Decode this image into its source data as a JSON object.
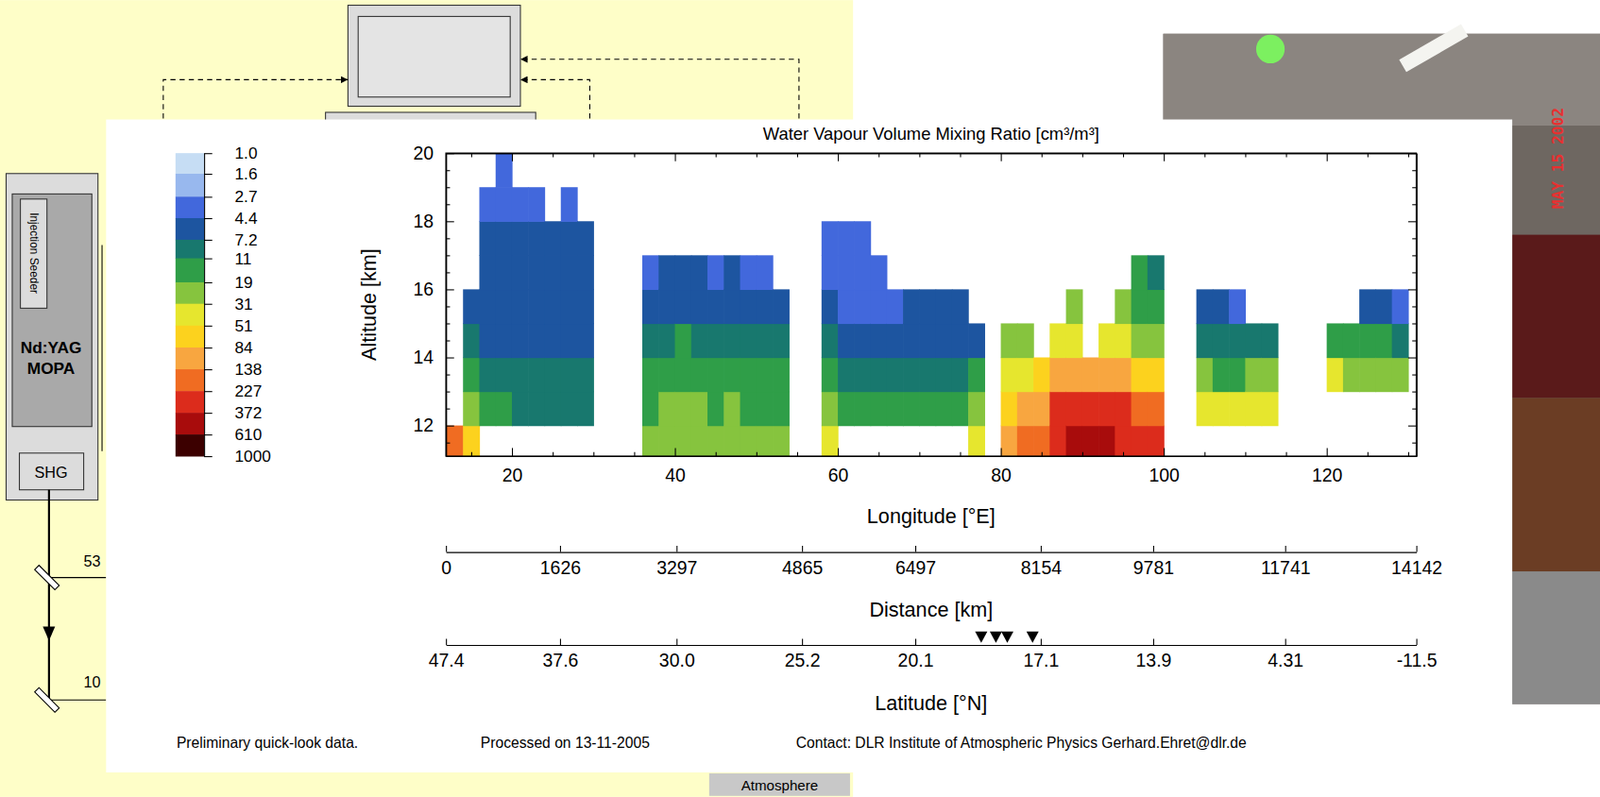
{
  "slide": {
    "seeder": "Injection Seeder",
    "laser": [
      "Nd:YAG",
      "MOPA"
    ],
    "shg": "SHG",
    "beam_labels": [
      "53",
      "10"
    ],
    "atmosphere": "Atmosphere"
  },
  "photo": {
    "date": "MAY 15 2002"
  },
  "chart_data": {
    "type": "heatmap",
    "title": "Water Vapour Volume Mixing Ratio [cm³/m³]",
    "x_label": "Longitude [°E]",
    "y_label": "Altitude [km]",
    "xlim": [
      11.9,
      131
    ],
    "ylim": [
      11.1,
      20
    ],
    "xticks": [
      20,
      40,
      60,
      80,
      100,
      120
    ],
    "yticks": [
      12,
      14,
      16,
      18,
      20
    ],
    "xminor": [
      15,
      25,
      30,
      35,
      45,
      50,
      55,
      65,
      70,
      75,
      85,
      90,
      95,
      105,
      110,
      115,
      125,
      130
    ],
    "yminor": [
      11.5,
      12.5,
      13,
      13.5,
      14.5,
      15,
      15.5,
      16.5,
      17,
      17.5,
      18.5,
      19,
      19.5
    ],
    "x_edges": [
      12,
      14,
      16,
      18,
      20,
      22,
      24,
      26,
      28,
      30,
      32,
      34,
      36,
      38,
      40,
      42,
      44,
      46,
      48,
      50,
      52,
      54,
      56,
      58,
      60,
      62,
      64,
      66,
      68,
      70,
      72,
      74,
      76,
      78,
      80,
      82,
      84,
      86,
      88,
      90,
      92,
      94,
      96,
      98,
      100,
      102,
      104,
      106,
      108,
      110,
      112,
      114,
      116,
      118,
      120,
      122,
      124,
      126,
      128,
      130
    ],
    "y_edges": [
      11,
      12,
      13,
      14,
      15,
      16,
      17,
      18,
      19,
      20
    ],
    "z": [
      [
        138,
        null,
        null,
        null,
        null,
        null,
        null,
        null,
        null
      ],
      [
        51,
        19,
        11,
        7.2,
        4.4,
        null,
        null,
        null,
        null
      ],
      [
        null,
        11,
        8,
        7,
        6,
        5.5,
        5,
        4,
        null
      ],
      [
        null,
        11,
        8,
        7,
        6,
        5.5,
        5,
        4,
        3
      ],
      [
        null,
        10,
        8,
        7,
        6,
        5.5,
        5,
        4,
        null
      ],
      [
        null,
        10,
        8,
        7,
        6,
        5.5,
        5,
        4,
        null
      ],
      [
        null,
        10,
        8,
        7,
        6,
        5.5,
        5,
        null,
        null
      ],
      [
        null,
        10,
        8,
        7,
        6,
        5.5,
        5,
        4,
        null
      ],
      [
        null,
        10,
        8,
        7,
        6,
        5.5,
        5,
        null,
        null
      ],
      [
        null,
        null,
        null,
        null,
        null,
        null,
        null,
        null,
        null
      ],
      [
        null,
        null,
        null,
        null,
        null,
        null,
        null,
        null,
        null
      ],
      [
        null,
        null,
        null,
        null,
        null,
        null,
        null,
        null,
        null
      ],
      [
        25,
        18,
        13,
        9,
        6,
        4,
        null,
        null,
        null
      ],
      [
        28,
        20,
        14,
        10,
        7,
        4.5,
        null,
        null,
        null
      ],
      [
        30,
        22,
        15,
        11,
        7,
        4.5,
        null,
        null,
        null
      ],
      [
        25,
        20,
        14,
        10,
        7,
        4.5,
        null,
        null,
        null
      ],
      [
        22,
        18,
        13,
        9,
        6,
        4,
        null,
        null,
        null
      ],
      [
        25,
        19,
        14,
        10,
        7,
        4.5,
        null,
        null,
        null
      ],
      [
        22,
        18,
        13,
        9,
        6,
        4,
        null,
        null,
        null
      ],
      [
        20,
        16,
        12,
        8,
        6,
        4,
        null,
        null,
        null
      ],
      [
        20,
        15,
        12,
        8,
        6,
        null,
        null,
        null,
        null
      ],
      [
        null,
        null,
        null,
        null,
        null,
        null,
        null,
        null,
        null
      ],
      [
        null,
        null,
        null,
        null,
        null,
        null,
        null,
        null,
        null
      ],
      [
        31,
        19,
        12,
        8,
        5,
        3.5,
        3,
        null,
        null
      ],
      [
        null,
        11,
        9,
        6,
        4,
        3.5,
        3,
        null,
        null
      ],
      [
        null,
        11,
        9,
        6,
        4,
        3,
        3,
        null,
        null
      ],
      [
        null,
        12,
        9,
        6,
        4,
        3.5,
        null,
        null,
        null
      ],
      [
        null,
        12,
        9,
        6,
        4,
        null,
        null,
        null,
        null
      ],
      [
        null,
        13,
        10,
        7,
        4.5,
        null,
        null,
        null,
        null
      ],
      [
        null,
        13,
        10,
        7,
        4.5,
        null,
        null,
        null,
        null
      ],
      [
        null,
        13,
        10,
        7,
        4.5,
        null,
        null,
        null,
        null
      ],
      [
        null,
        13,
        10,
        7,
        4.5,
        null,
        null,
        null,
        null
      ],
      [
        31,
        19,
        11,
        7,
        null,
        null,
        null,
        null,
        null
      ],
      [
        null,
        null,
        null,
        null,
        null,
        null,
        null,
        null,
        null
      ],
      [
        84,
        51,
        31,
        19,
        null,
        null,
        null,
        null,
        null
      ],
      [
        138,
        84,
        40,
        19,
        null,
        null,
        null,
        null,
        null
      ],
      [
        150,
        100,
        51,
        null,
        null,
        null,
        null,
        null,
        null
      ],
      [
        300,
        227,
        84,
        31,
        null,
        null,
        null,
        null,
        null
      ],
      [
        372,
        300,
        100,
        40,
        19,
        null,
        null,
        null,
        null
      ],
      [
        400,
        300,
        120,
        null,
        null,
        null,
        null,
        null,
        null
      ],
      [
        372,
        250,
        100,
        31,
        null,
        null,
        null,
        null,
        null
      ],
      [
        300,
        227,
        84,
        31,
        19,
        null,
        null,
        null,
        null
      ],
      [
        300,
        200,
        60,
        25,
        15,
        11,
        null,
        null,
        null
      ],
      [
        250,
        150,
        51,
        20,
        12,
        8,
        null,
        null,
        null
      ],
      [
        null,
        null,
        null,
        null,
        null,
        null,
        null,
        null,
        null
      ],
      [
        null,
        null,
        null,
        null,
        null,
        null,
        null,
        null,
        null
      ],
      [
        null,
        40,
        19,
        9,
        5,
        null,
        null,
        null,
        null
      ],
      [
        null,
        35,
        16,
        8,
        4.5,
        null,
        null,
        null,
        null
      ],
      [
        null,
        35,
        16,
        8,
        4,
        null,
        null,
        null,
        null
      ],
      [
        null,
        40,
        19,
        10,
        null,
        null,
        null,
        null,
        null
      ],
      [
        null,
        35,
        19,
        10,
        null,
        null,
        null,
        null,
        null
      ],
      [
        null,
        null,
        null,
        null,
        null,
        null,
        null,
        null,
        null
      ],
      [
        null,
        null,
        null,
        null,
        null,
        null,
        null,
        null,
        null
      ],
      [
        null,
        null,
        null,
        null,
        null,
        null,
        null,
        null,
        null
      ],
      [
        null,
        null,
        31,
        15,
        null,
        null,
        null,
        null,
        null
      ],
      [
        null,
        null,
        28,
        12,
        null,
        null,
        null,
        null,
        null
      ],
      [
        null,
        null,
        25,
        11,
        6,
        null,
        null,
        null,
        null
      ],
      [
        null,
        null,
        28,
        12,
        7,
        null,
        null,
        null,
        null
      ],
      [
        null,
        null,
        25,
        10,
        4,
        null,
        null,
        null,
        null
      ]
    ],
    "colorbar": {
      "range": [
        1,
        1000
      ],
      "ticks": [
        {
          "value": 1,
          "label": "1.0"
        },
        1.6,
        2.7,
        4.4,
        7.2,
        11,
        19,
        31,
        51,
        84,
        138,
        227,
        372,
        610,
        1000
      ],
      "colors": [
        "#c6ddf4",
        "#98b8ee",
        "#4268dc",
        "#1d55a0",
        "#18786e",
        "#2f9e48",
        "#86c43e",
        "#e6e62e",
        "#fcd21e",
        "#f8a640",
        "#f06c22",
        "#dc2c1c",
        "#a80c0c",
        "#3c0000"
      ]
    },
    "distance": {
      "label": "Distance [km]",
      "ticks": [
        0,
        1626,
        3297,
        4865,
        6497,
        8154,
        9781,
        11741,
        14142
      ],
      "tick_lon": [
        11.9,
        25.9,
        40.2,
        55.6,
        69.5,
        84.9,
        98.7,
        114.9,
        131
      ]
    },
    "latitude": {
      "label": "Latitude [°N]",
      "ticks": [
        47.4,
        37.6,
        {
          "value": 30,
          "label": "30.0"
        },
        25.2,
        20.1,
        17.1,
        13.9,
        4.31,
        -11.5
      ],
      "tick_lon": [
        11.9,
        25.9,
        40.2,
        55.6,
        69.5,
        84.9,
        98.7,
        114.9,
        131
      ]
    },
    "markers": {
      "x": [
        77.6,
        79.4,
        80.8,
        83.9
      ]
    },
    "footer": [
      "Preliminary quick-look data.",
      "Processed on 13-11-2005",
      "Contact: DLR Institute of Atmospheric Physics  Gerhard.Ehret@dlr.de"
    ]
  }
}
